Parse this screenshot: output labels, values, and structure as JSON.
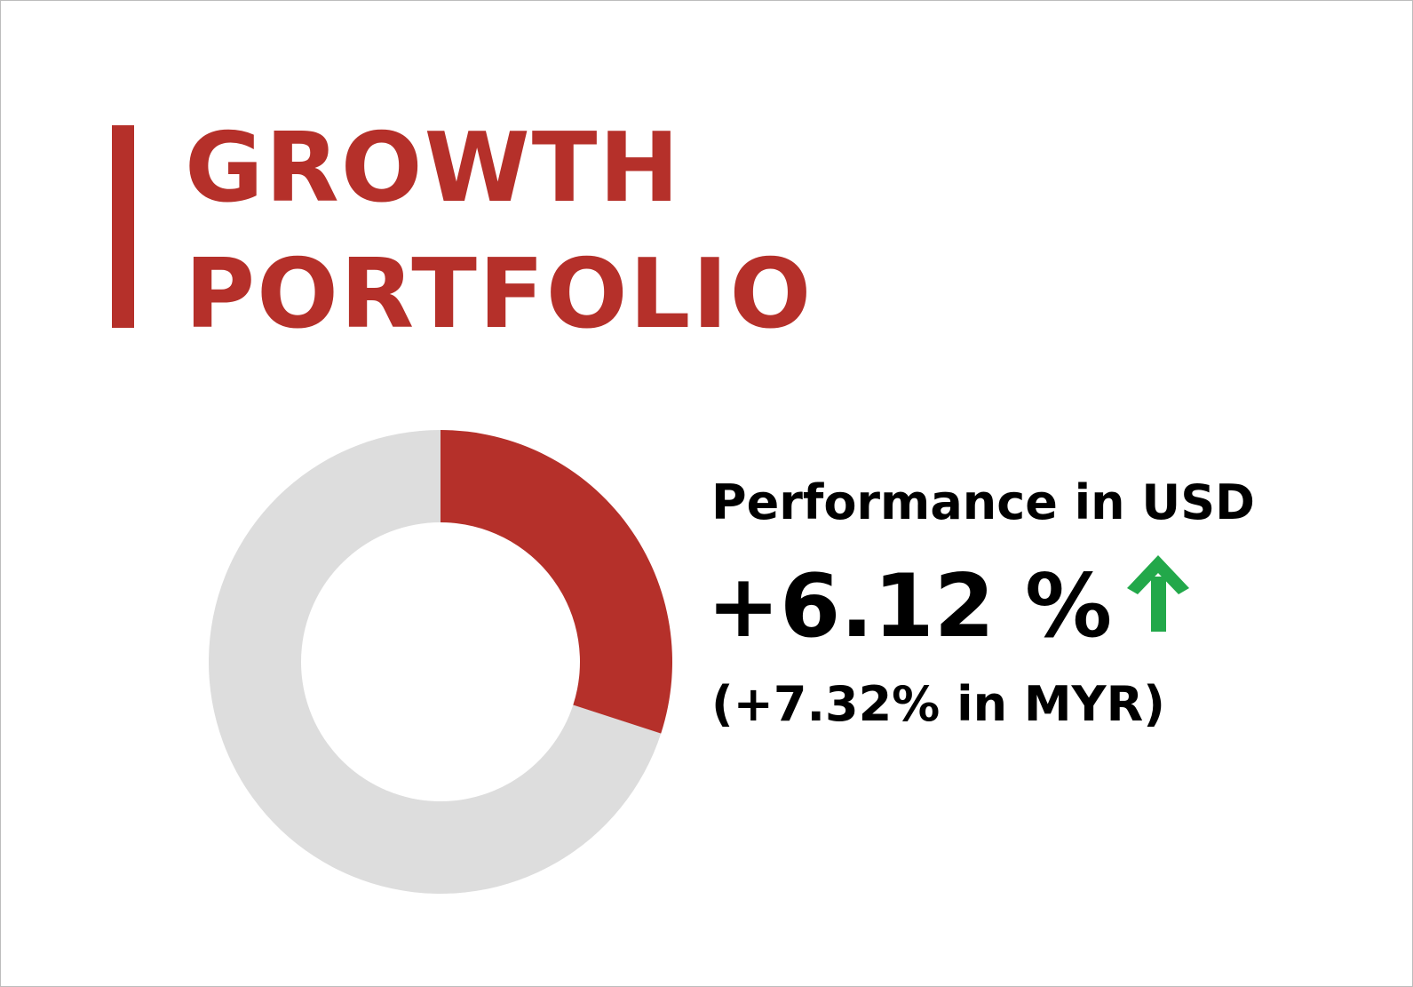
{
  "chart_data": {
    "type": "donut",
    "title": "GROWTH PORTFOLIO",
    "values": [
      30,
      70
    ],
    "colors": [
      "#b5302a",
      "#dddddd"
    ],
    "annotations": [
      "Performance in USD",
      "+6.12 %",
      "(+7.32% in MYR)"
    ]
  }
}
